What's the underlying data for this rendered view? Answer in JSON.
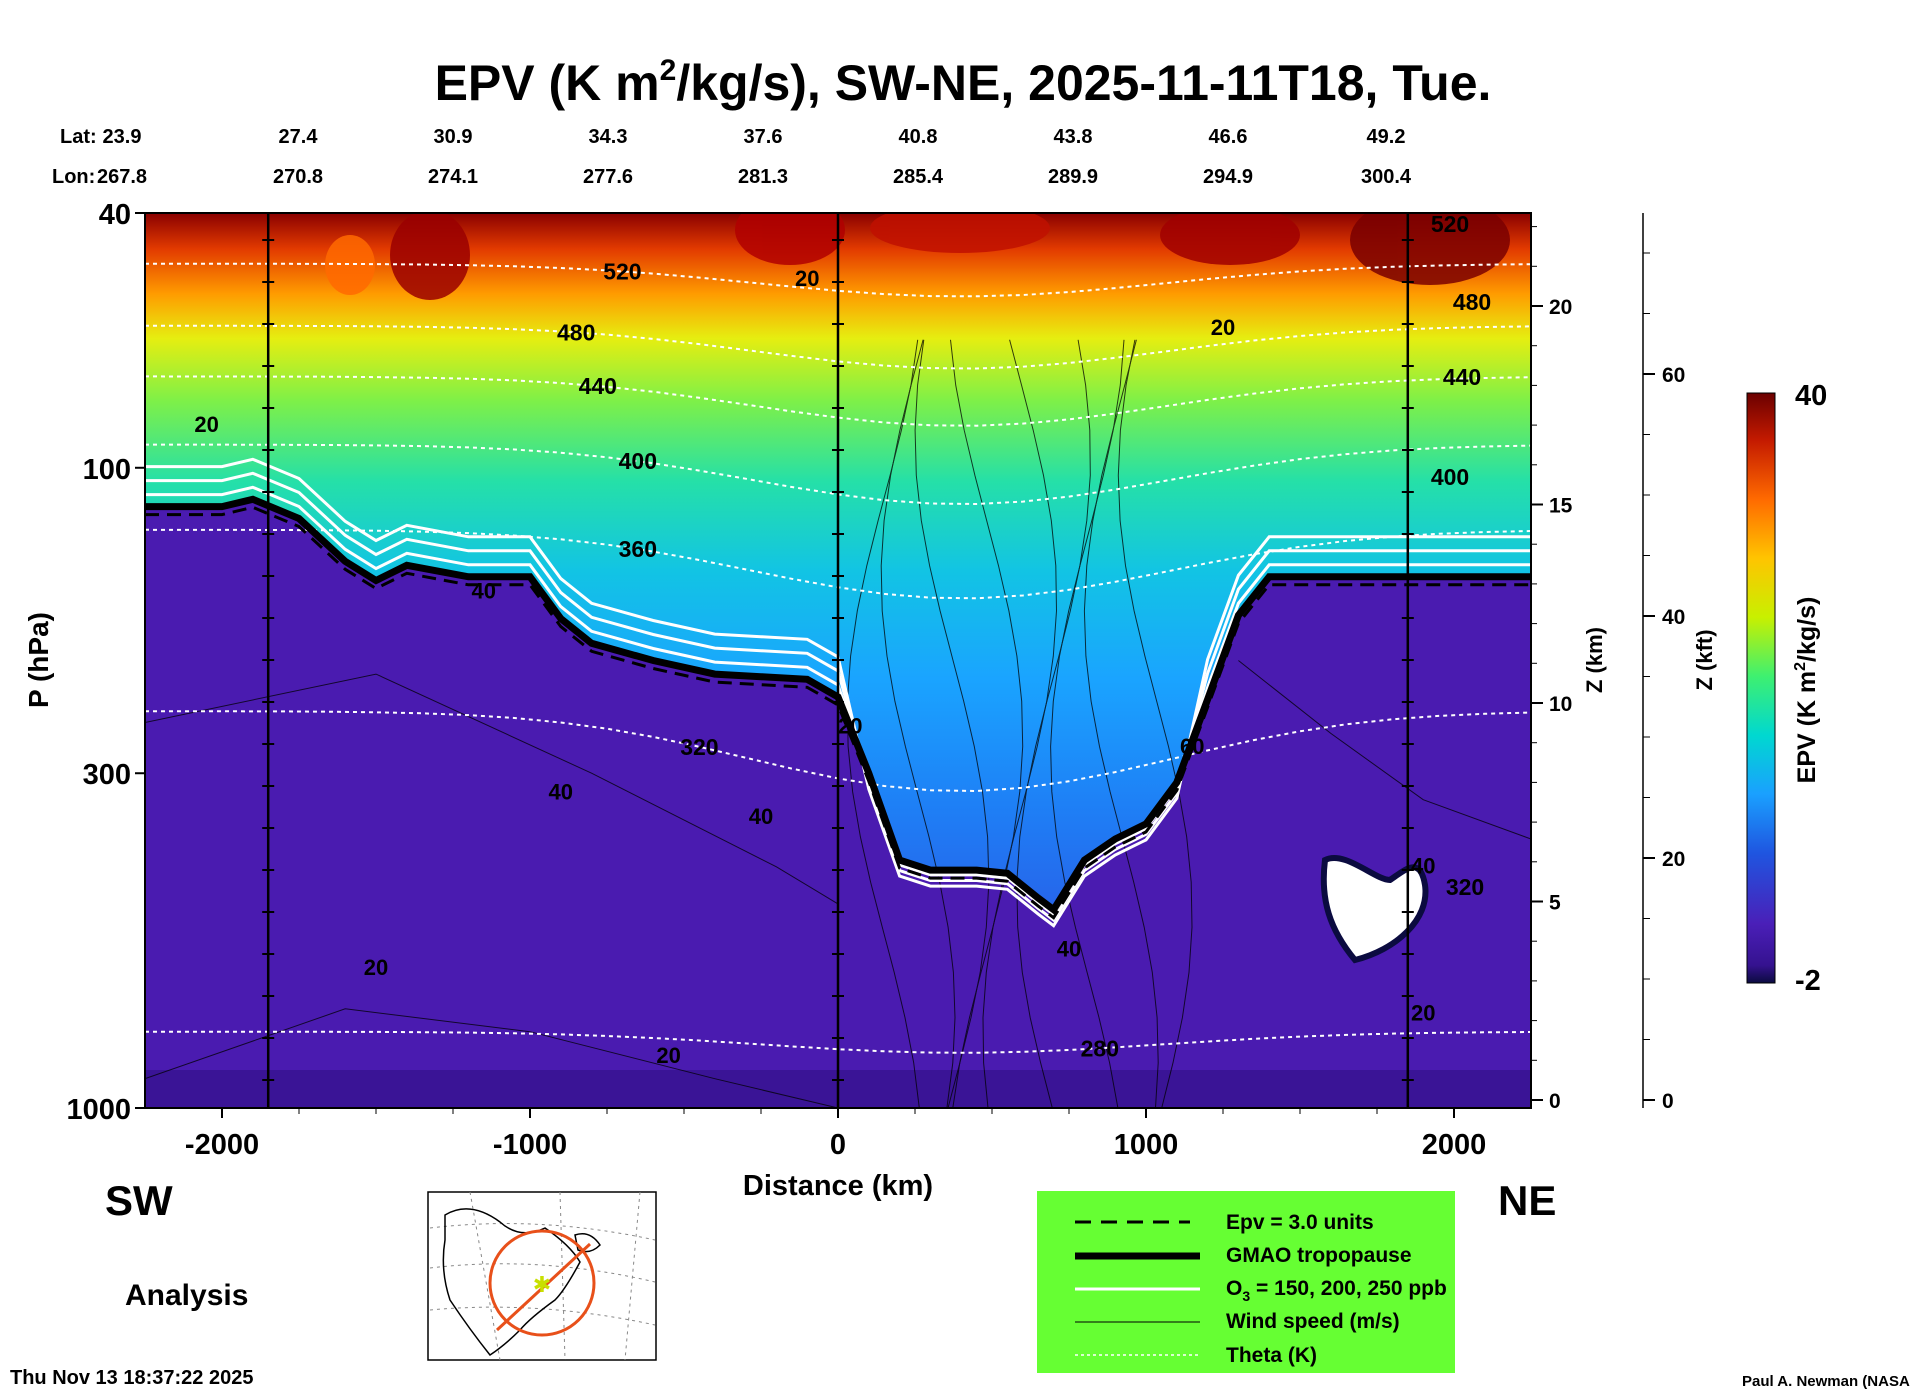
{
  "chart_data": {
    "type": "heatmap",
    "title": "EPV (K m",
    "title_sup": "2",
    "title_rest": "/kg/s), SW-NE, 2025-11-11T18, Tue.",
    "xlabel": "Distance (km)",
    "ylabel": "P (hPa)",
    "ylabel_right_km": "Z (km)",
    "ylabel_right_kft": "Z (kft)",
    "x_range": [
      -2250,
      2250
    ],
    "x_ticks": [
      -2000,
      -1000,
      0,
      1000,
      2000
    ],
    "p_range": [
      1000,
      40
    ],
    "p_ticks": [
      40,
      100,
      300,
      1000
    ],
    "z_km_ticks": [
      0,
      5,
      10,
      15,
      20
    ],
    "z_kft_ticks": [
      0,
      20,
      40,
      60
    ],
    "lat_label": "Lat:",
    "lon_label": "Lon:",
    "lat_values": [
      "23.9",
      "27.4",
      "30.9",
      "34.3",
      "37.6",
      "40.8",
      "43.8",
      "46.6",
      "49.2"
    ],
    "lon_values": [
      "267.8",
      "270.8",
      "274.1",
      "277.6",
      "281.3",
      "285.4",
      "289.9",
      "294.9",
      "300.4"
    ],
    "colorbar": {
      "label": "EPV (K m",
      "label_sup": "2",
      "label_rest": "/kg/s)",
      "min": -2,
      "max": 40,
      "min_label": "-2",
      "max_label": "40"
    },
    "vertical_markers_km": [
      -1850,
      0,
      1850
    ],
    "tropopause_p": [
      [
        -2250,
        115
      ],
      [
        -2000,
        115
      ],
      [
        -1900,
        112
      ],
      [
        -1750,
        120
      ],
      [
        -1600,
        140
      ],
      [
        -1500,
        150
      ],
      [
        -1400,
        142
      ],
      [
        -1200,
        148
      ],
      [
        -1000,
        148
      ],
      [
        -900,
        172
      ],
      [
        -800,
        188
      ],
      [
        -600,
        200
      ],
      [
        -400,
        210
      ],
      [
        -250,
        212
      ],
      [
        -100,
        214
      ],
      [
        0,
        228
      ],
      [
        100,
        300
      ],
      [
        200,
        410
      ],
      [
        300,
        425
      ],
      [
        450,
        425
      ],
      [
        550,
        430
      ],
      [
        650,
        470
      ],
      [
        700,
        490
      ],
      [
        800,
        410
      ],
      [
        900,
        380
      ],
      [
        1000,
        360
      ],
      [
        1100,
        310
      ],
      [
        1200,
        230
      ],
      [
        1300,
        170
      ],
      [
        1400,
        148
      ],
      [
        1500,
        148
      ],
      [
        1850,
        148
      ],
      [
        2250,
        148
      ]
    ],
    "theta_contours": [
      {
        "label": "520",
        "level": 520
      },
      {
        "label": "480",
        "level": 480
      },
      {
        "label": "440",
        "level": 440
      },
      {
        "label": "400",
        "level": 400
      },
      {
        "label": "360",
        "level": 360
      },
      {
        "label": "320",
        "level": 320
      },
      {
        "label": "280",
        "level": 280
      }
    ],
    "wind_labels": [
      "20",
      "20",
      "20",
      "40",
      "40",
      "40",
      "20",
      "40",
      "40",
      "20",
      "20",
      "20",
      "60"
    ]
  },
  "labels": {
    "sw": "SW",
    "ne": "NE",
    "analysis": "Analysis",
    "timestamp": "Thu Nov 13 18:37:22 2025",
    "credit": "Paul A. Newman (NASA"
  },
  "legend": {
    "items": [
      {
        "label": "Epv = 3.0 units"
      },
      {
        "label": "GMAO tropopause"
      },
      {
        "label_a": "O",
        "label_sub": "3",
        "label_b": " = 150, 200, 250 ppb"
      },
      {
        "label": "Wind speed (m/s)"
      },
      {
        "label": "Theta (K)"
      }
    ],
    "background": "#66ff33"
  }
}
